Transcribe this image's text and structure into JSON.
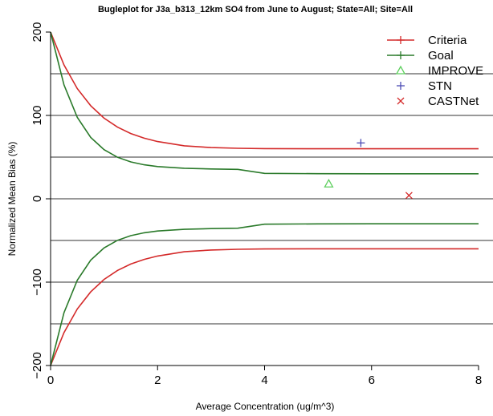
{
  "chart_data": {
    "type": "line",
    "title": "Bugleplot for J3a_b313_12km SO4 from June to August; State=All; Site=All",
    "xlabel": "Average Concentration (ug/m^3)",
    "ylabel": "Normalized Mean Bias (%)",
    "xlim": [
      0,
      8
    ],
    "ylim": [
      -200,
      200
    ],
    "xticks": [
      0,
      2,
      4,
      6,
      8
    ],
    "yticks": [
      -200,
      -100,
      0,
      100,
      200
    ],
    "xtick_labels": [
      "0",
      "2",
      "4",
      "6",
      "8"
    ],
    "ytick_labels": [
      "−200",
      "−100",
      "0",
      "100",
      "200"
    ],
    "hlines": [
      -150,
      -100,
      -50,
      0,
      50,
      100,
      150
    ],
    "legend_position": "top-right",
    "colors": {
      "criteria": "#d42a2a",
      "goal": "#2a7a2a",
      "improve": "#5fcf5f",
      "stn": "#4a4ab4",
      "castnet": "#d42a2a",
      "gridline": "#333333"
    },
    "curve_x": [
      0,
      0.25,
      0.5,
      0.75,
      1,
      1.25,
      1.5,
      1.75,
      2,
      2.5,
      3,
      3.5,
      4,
      5,
      6,
      7,
      8
    ],
    "series": [
      {
        "name": "Criteria",
        "color": "#d42a2a",
        "style": "line",
        "y_upper": [
          200,
          160.6,
          132.1,
          111.6,
          96.7,
          86.0,
          78.3,
          72.7,
          68.7,
          63.6,
          61.4,
          60.6,
          60.2,
          60.0,
          60.0,
          60.0,
          60.0
        ],
        "y_lower": [
          -200,
          -160.6,
          -132.1,
          -111.6,
          -96.7,
          -86.0,
          -78.3,
          -72.7,
          -68.7,
          -63.6,
          -61.4,
          -60.6,
          -60.2,
          -60.0,
          -60.0,
          -60.0,
          -60.0
        ]
      },
      {
        "name": "Goal",
        "color": "#2a7a2a",
        "style": "line",
        "y_upper": [
          200,
          136.6,
          97.6,
          73.6,
          58.9,
          49.8,
          44.2,
          40.8,
          38.7,
          36.6,
          35.8,
          35.3,
          30.5,
          30.1,
          30.0,
          30.0,
          30.0
        ],
        "y_lower": [
          -200,
          -136.6,
          -97.6,
          -73.6,
          -58.9,
          -49.8,
          -44.2,
          -40.8,
          -38.7,
          -36.6,
          -35.8,
          -35.3,
          -30.5,
          -30.1,
          -30.0,
          -30.0,
          -30.0
        ]
      }
    ],
    "points": [
      {
        "name": "IMPROVE",
        "marker": "triangle",
        "color": "#5fcf5f",
        "x": 5.2,
        "y": 18
      },
      {
        "name": "STN",
        "marker": "plus",
        "color": "#4a4ab4",
        "x": 5.8,
        "y": 67
      },
      {
        "name": "CASTNet",
        "marker": "cross",
        "color": "#d42a2a",
        "x": 6.7,
        "y": 4
      }
    ],
    "legend": [
      {
        "label": "Criteria",
        "marker": "line-plus",
        "color": "#d42a2a"
      },
      {
        "label": "Goal",
        "marker": "line-plus",
        "color": "#2a7a2a"
      },
      {
        "label": "IMPROVE",
        "marker": "triangle",
        "color": "#5fcf5f"
      },
      {
        "label": "STN",
        "marker": "plus",
        "color": "#4a4ab4"
      },
      {
        "label": "CASTNet",
        "marker": "cross",
        "color": "#d42a2a"
      }
    ]
  }
}
